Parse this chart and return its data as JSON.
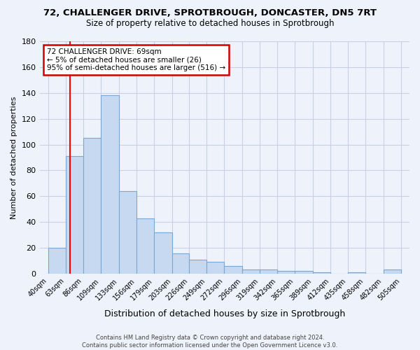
{
  "title": "72, CHALLENGER DRIVE, SPROTBROUGH, DONCASTER, DN5 7RT",
  "subtitle": "Size of property relative to detached houses in Sprotbrough",
  "xlabel": "Distribution of detached houses by size in Sprotbrough",
  "ylabel": "Number of detached properties",
  "bin_edges": [
    40,
    63,
    86,
    109,
    133,
    156,
    179,
    203,
    226,
    249,
    272,
    296,
    319,
    342,
    365,
    389,
    412,
    435,
    458,
    482,
    505
  ],
  "bin_labels": [
    "40sqm",
    "63sqm",
    "86sqm",
    "109sqm",
    "133sqm",
    "156sqm",
    "179sqm",
    "203sqm",
    "226sqm",
    "249sqm",
    "272sqm",
    "296sqm",
    "319sqm",
    "342sqm",
    "365sqm",
    "389sqm",
    "412sqm",
    "435sqm",
    "458sqm",
    "482sqm",
    "505sqm"
  ],
  "bar_heights": [
    20,
    91,
    105,
    138,
    64,
    43,
    32,
    16,
    11,
    9,
    6,
    3,
    3,
    2,
    2,
    1,
    0,
    1,
    0,
    3
  ],
  "bar_color": "#c6d9f0",
  "bar_edge_color": "#7aa8d2",
  "property_size": 69,
  "ylim": [
    0,
    180
  ],
  "yticks": [
    0,
    20,
    40,
    60,
    80,
    100,
    120,
    140,
    160,
    180
  ],
  "annotation_text": "72 CHALLENGER DRIVE: 69sqm\n← 5% of detached houses are smaller (26)\n95% of semi-detached houses are larger (516) →",
  "annotation_box_edge": "#cc0000",
  "footer_line1": "Contains HM Land Registry data © Crown copyright and database right 2024.",
  "footer_line2": "Contains public sector information licensed under the Open Government Licence v3.0.",
  "background_color": "#eef2fb",
  "grid_color": "#c8d0e8"
}
